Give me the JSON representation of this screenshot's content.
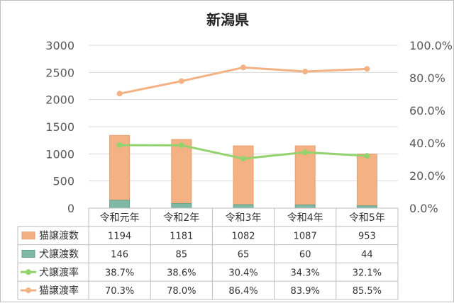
{
  "chart_data": {
    "title": "新潟県",
    "type": "bar",
    "stacked": true,
    "categories": [
      "令和元年",
      "令和2年",
      "令和3年",
      "令和4年",
      "令和5年"
    ],
    "series": [
      {
        "name": "猫譲渡数",
        "type": "bar",
        "axis": "left",
        "values": [
          1194,
          1181,
          1082,
          1087,
          953
        ],
        "display": [
          "1194",
          "1181",
          "1082",
          "1087",
          "953"
        ],
        "color": "#f4b183"
      },
      {
        "name": "犬譲渡数",
        "type": "bar",
        "axis": "left",
        "values": [
          146,
          85,
          65,
          60,
          44
        ],
        "display": [
          "146",
          "85",
          "65",
          "60",
          "44"
        ],
        "color": "#7fb8a4"
      },
      {
        "name": "犬譲渡率",
        "type": "line",
        "axis": "right",
        "values": [
          38.7,
          38.6,
          30.4,
          34.3,
          32.1
        ],
        "display": [
          "38.7%",
          "38.6%",
          "30.4%",
          "34.3%",
          "32.1%"
        ],
        "color": "#92d36e"
      },
      {
        "name": "猫譲渡率",
        "type": "line",
        "axis": "right",
        "values": [
          70.3,
          78.0,
          86.4,
          83.9,
          85.5
        ],
        "display": [
          "70.3%",
          "78.0%",
          "86.4%",
          "83.9%",
          "85.5%"
        ],
        "color": "#f4b183"
      }
    ],
    "ylim_left": [
      0,
      3000
    ],
    "yticks_left": [
      "0",
      "500",
      "1000",
      "1500",
      "2000",
      "2500",
      "3000"
    ],
    "ylim_right": [
      0,
      100
    ],
    "yticks_right": [
      "0.0%",
      "20.0%",
      "40.0%",
      "60.0%",
      "80.0%",
      "100.0%"
    ],
    "grid": true,
    "legend": "data-table"
  }
}
